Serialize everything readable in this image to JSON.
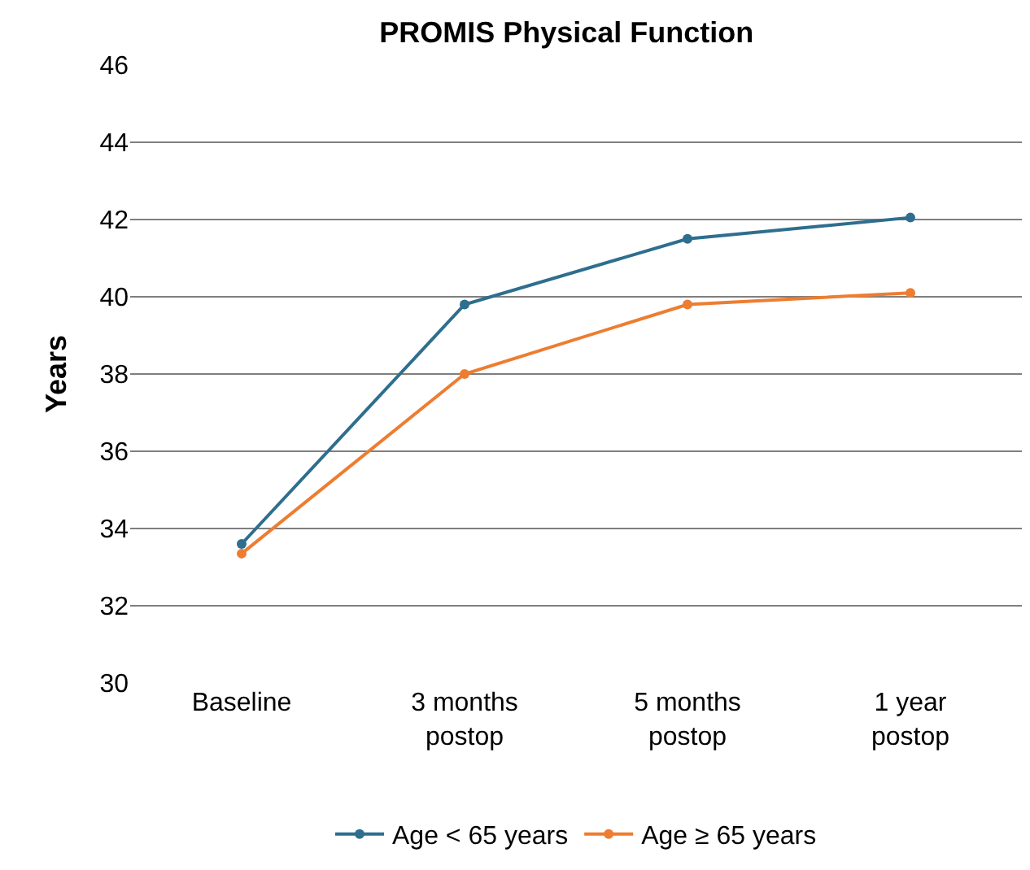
{
  "chart_data": {
    "type": "line",
    "title": "PROMIS Physical Function",
    "ylabel": "Years",
    "categories": [
      "Baseline",
      "3 months postop",
      "5 months postop",
      "1 year postop"
    ],
    "series": [
      {
        "name": "Age < 65 years",
        "color": "#2e6e8e",
        "values": [
          33.6,
          39.8,
          41.5,
          42.05
        ]
      },
      {
        "name": "Age ≥ 65 years",
        "color": "#ed7d31",
        "values": [
          33.35,
          38.0,
          39.8,
          40.1
        ]
      }
    ],
    "ylim": [
      30,
      46
    ],
    "yticks": [
      30,
      32,
      34,
      36,
      38,
      40,
      42,
      44,
      46
    ],
    "grid": "y",
    "legend": "bottom",
    "marker": "circle",
    "line_style": "solid"
  }
}
